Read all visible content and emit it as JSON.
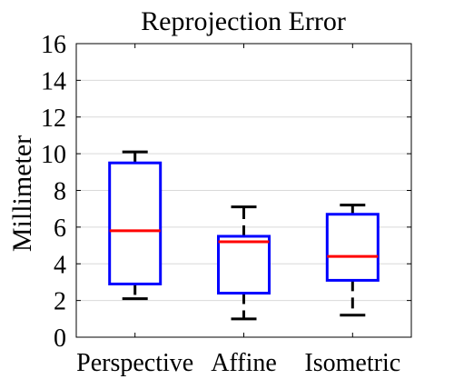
{
  "chart_data": {
    "type": "boxplot",
    "title": "Reprojection Error",
    "xlabel": "",
    "ylabel": "Millimeter",
    "ylim": [
      0,
      16
    ],
    "yticks": [
      0,
      2,
      4,
      6,
      8,
      10,
      12,
      14,
      16
    ],
    "grid": "horizontal",
    "categories": [
      "Perspective",
      "Affine",
      "Isometric"
    ],
    "boxes": [
      {
        "min": 2.1,
        "q1": 2.9,
        "median": 5.8,
        "q3": 9.5,
        "max": 10.1
      },
      {
        "min": 1.0,
        "q1": 2.4,
        "median": 5.2,
        "q3": 5.5,
        "max": 7.1
      },
      {
        "min": 1.2,
        "q1": 3.1,
        "median": 4.4,
        "q3": 6.7,
        "max": 7.2
      }
    ],
    "colors": {
      "box": "#0000ff",
      "median": "#ff0000",
      "whisker": "#000000",
      "grid": "#d9d9d9"
    }
  }
}
